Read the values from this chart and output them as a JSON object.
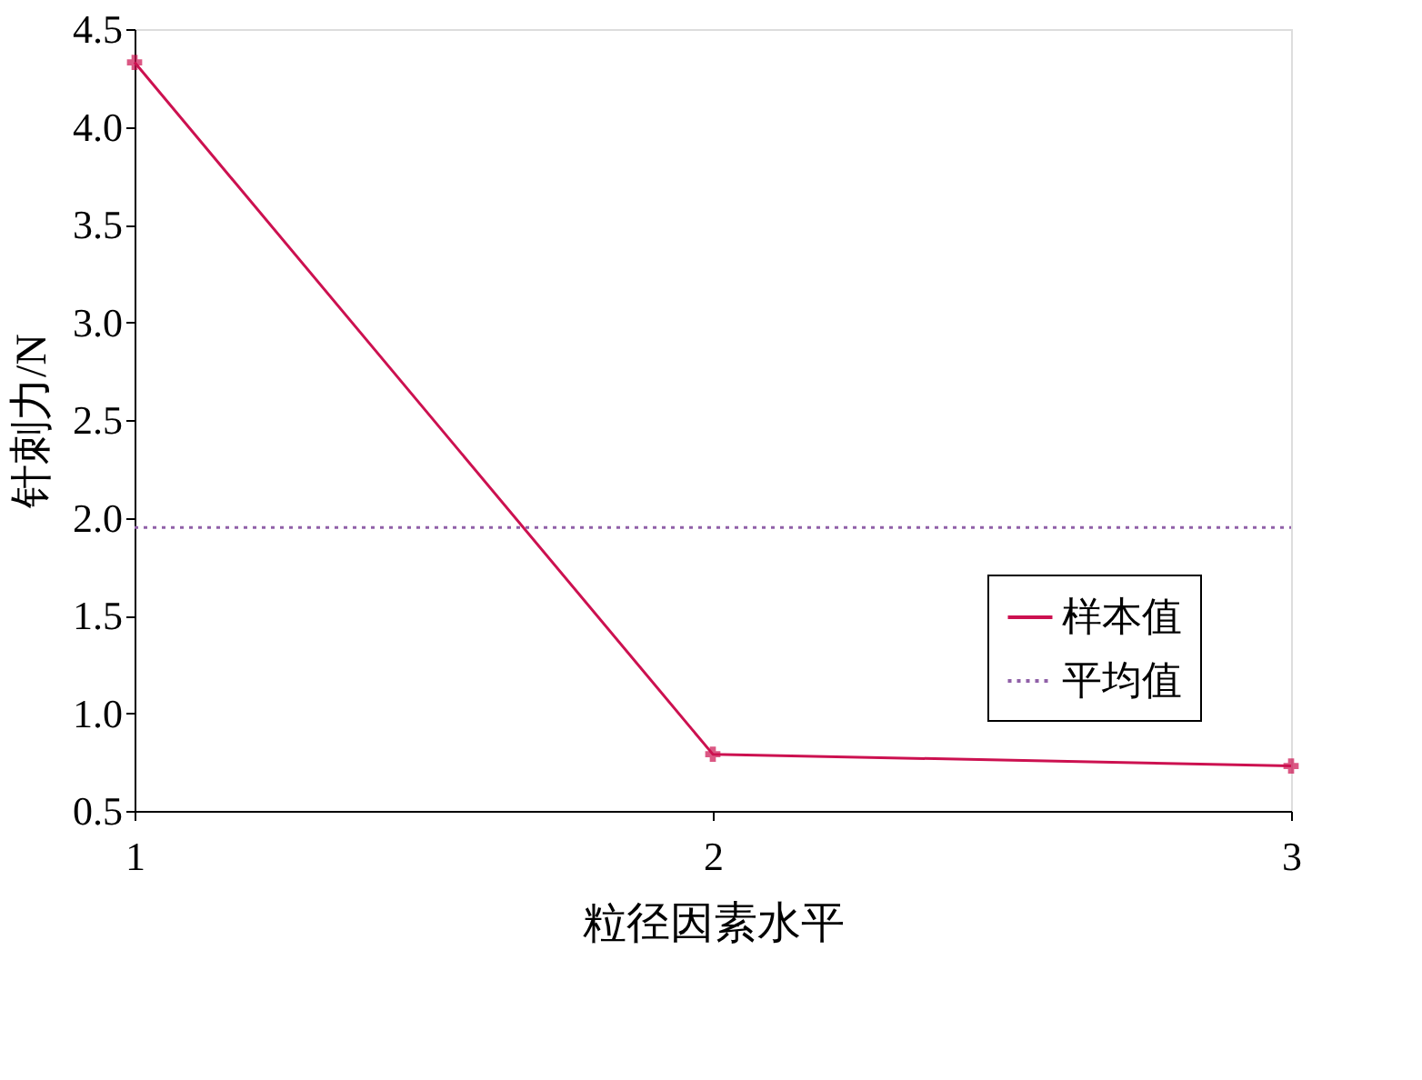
{
  "chart_data": {
    "type": "line",
    "xlabel": "粒径因素水平",
    "ylabel": "针刺力/N",
    "x": [
      1,
      2,
      3
    ],
    "xlim": [
      1,
      3
    ],
    "xticks": [
      1,
      2,
      3
    ],
    "ylim": [
      0.5,
      4.5
    ],
    "yticks": [
      {
        "value": 0.5,
        "label": "0.5"
      },
      {
        "value": 1,
        "label": "1.0"
      },
      {
        "value": 1.5,
        "label": "1.5"
      },
      {
        "value": 2,
        "label": "2.0"
      },
      {
        "value": 2.5,
        "label": "2.5"
      },
      {
        "value": 3,
        "label": "3.0"
      },
      {
        "value": 3.5,
        "label": "3.5"
      },
      {
        "value": 4,
        "label": "4.0"
      },
      {
        "value": 4.5,
        "label": "4.5"
      }
    ],
    "grid": false,
    "legend": "bottom right",
    "series": [
      {
        "name": "样本值",
        "color": "#cc1150",
        "values": [
          4.33,
          0.79,
          0.73
        ],
        "marker": "cross",
        "line_style": "solid"
      },
      {
        "name": "平均值",
        "color": "#9060a8",
        "values": [
          1.95,
          1.95,
          1.95
        ],
        "marker": "none",
        "line_style": "dotted"
      }
    ]
  }
}
